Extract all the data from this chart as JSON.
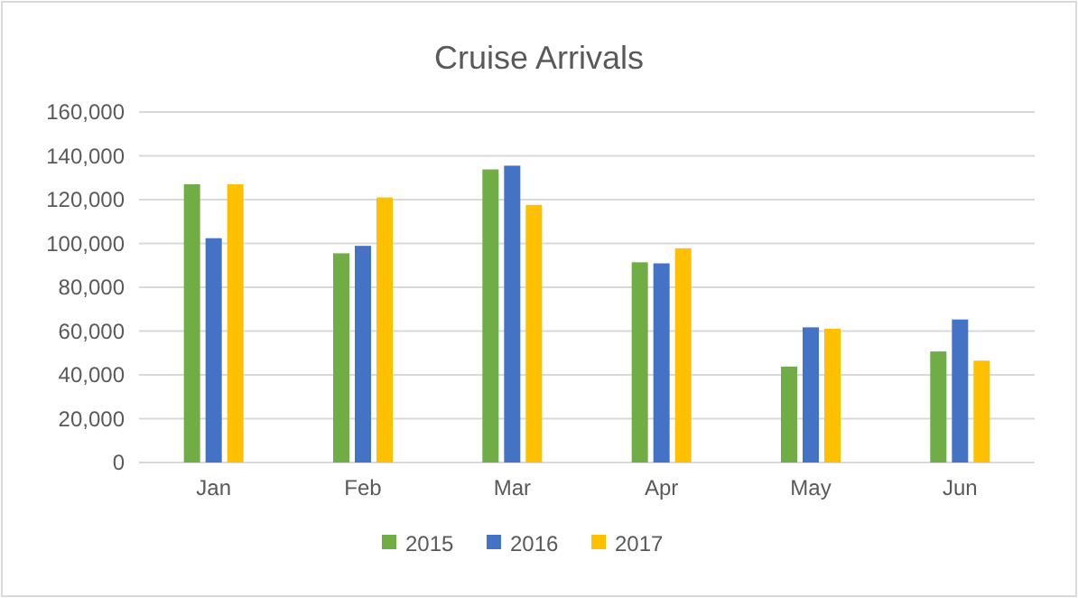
{
  "chart_data": {
    "type": "bar",
    "title": "Cruise Arrivals",
    "categories": [
      "Jan",
      "Feb",
      "Mar",
      "Apr",
      "May",
      "Jun"
    ],
    "series": [
      {
        "name": "2015",
        "color": "#70ad47",
        "values": [
          127000,
          95500,
          133800,
          91400,
          43800,
          50700
        ]
      },
      {
        "name": "2016",
        "color": "#4472c4",
        "values": [
          102400,
          98900,
          135500,
          90900,
          61700,
          65300
        ]
      },
      {
        "name": "2017",
        "color": "#ffc000",
        "values": [
          127000,
          121000,
          117600,
          97800,
          61100,
          46500
        ]
      }
    ],
    "ylim": [
      0,
      160000
    ],
    "yticks": [
      {
        "value": 0,
        "label": "0"
      },
      {
        "value": 20000,
        "label": "20,000"
      },
      {
        "value": 40000,
        "label": "40,000"
      },
      {
        "value": 60000,
        "label": "60,000"
      },
      {
        "value": 80000,
        "label": "80,000"
      },
      {
        "value": 100000,
        "label": "100,000"
      },
      {
        "value": 120000,
        "label": "120,000"
      },
      {
        "value": 140000,
        "label": "140,000"
      },
      {
        "value": 160000,
        "label": "160,000"
      }
    ],
    "grid": "y",
    "legend": "bottom"
  }
}
